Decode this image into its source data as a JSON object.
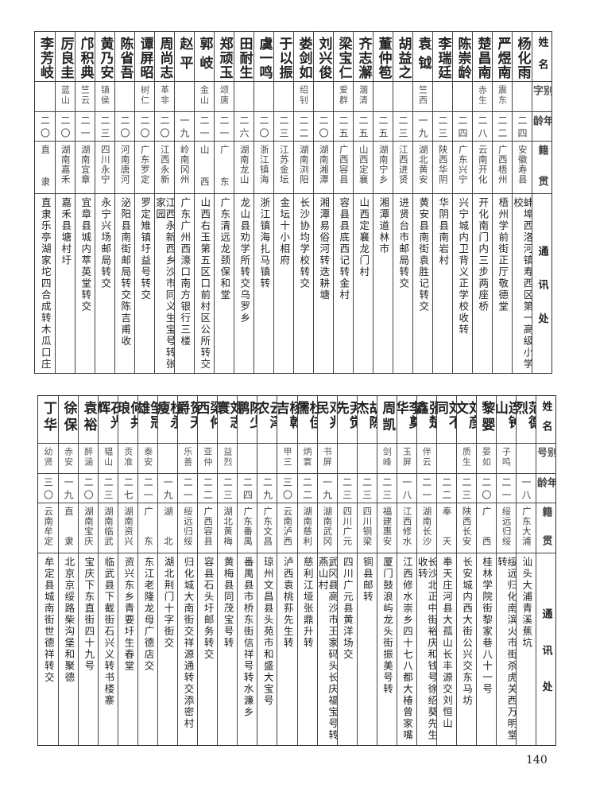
{
  "top_table": {
    "headers": [
      "姓名",
      "别字",
      "年龄",
      "籍贯",
      "通讯处"
    ],
    "rows": [
      {
        "name": "杨化雨",
        "alias": "",
        "age": "二四",
        "native_place": "安徽寿县",
        "address": "蚌埠西洛河镇寿西区第一高级小学校"
      },
      {
        "name": "严煜南",
        "alias": "震东",
        "age": "二二",
        "native_place": "广西梧州",
        "address": "梧州学前街正厅敬德堂"
      },
      {
        "name": "楚昌南",
        "alias": "赤生",
        "age": "二八",
        "native_place": "云南开化",
        "address": "开化南门内三步两座桥"
      },
      {
        "name": "陈崇龄",
        "alias": "",
        "age": "二四",
        "native_place": "广东兴宁",
        "address": "兴宁城内卫背义正学校收转"
      },
      {
        "name": "李瑞廷",
        "alias": "",
        "age": "二三",
        "native_place": "陕西华阴",
        "address": "华阴县南岩村"
      },
      {
        "name": "袁钺",
        "alias": "竺西",
        "age": "一九",
        "native_place": "湖北黄安",
        "address": "黄安县南街袁胜记转交"
      },
      {
        "name": "胡益之",
        "alias": "",
        "age": "二三",
        "native_place": "江西进贤",
        "address": "进贤台市邮局转交"
      },
      {
        "name": "董仲笣",
        "alias": "",
        "age": "二五",
        "native_place": "湖南宁乡",
        "address": "湘潭道林市"
      },
      {
        "name": "齐志澥",
        "alias": "溷清",
        "age": "二五",
        "native_place": "山西定襄",
        "address": "山西定襄龙门村"
      },
      {
        "name": "梁宝仁",
        "alias": "爱群",
        "age": "二五",
        "native_place": "广西容县",
        "address": "容县县底西记转金村"
      },
      {
        "name": "刘兴俊",
        "alias": "",
        "age": "二〇",
        "native_place": "湖南湘潭",
        "address": "湘潭易俗河转迭耕塘"
      },
      {
        "name": "娄剑如",
        "alias": "绍钊",
        "age": "二二",
        "native_place": "湖南浏阳",
        "address": "长沙协均学校转交"
      },
      {
        "name": "于以振",
        "alias": "",
        "age": "二三",
        "native_place": "江苏金坛",
        "address": "金坛十小相府"
      },
      {
        "name": "虞一鸣",
        "alias": "",
        "age": "二〇",
        "native_place": "浙江镇海",
        "address": "浙江镇海扎马镇转"
      },
      {
        "name": "田耐生",
        "alias": "",
        "age": "二六",
        "native_place": "湖南龙山",
        "address": "龙山县劝学所转交乌罗乡"
      },
      {
        "name": "郑顽玉",
        "alias": "颂唐",
        "age": "二一",
        "native_place": "广东",
        "address": "广东清远龙颈保和堂"
      },
      {
        "name": "郭岐",
        "alias": "金山",
        "age": "二一",
        "native_place": "山西",
        "address": "山西右玉第五区口前村区公所转交"
      },
      {
        "name": "赵平",
        "alias": "",
        "age": "一九",
        "native_place": "岭南冈州",
        "address": "广东广州西濠口南方银行三楼"
      },
      {
        "name": "周尚志",
        "alias": "革非",
        "age": "二〇",
        "native_place": "江西永新",
        "address": "江西永新西乡沙市同义生宝号转张家园"
      },
      {
        "name": "谭屏昭",
        "alias": "树仁",
        "age": "二〇",
        "native_place": "广东罗定",
        "address": "罗定雉镇圩益号转交"
      },
      {
        "name": "陈省吾",
        "alias": "",
        "age": "二〇",
        "native_place": "河南唐河",
        "address": "泌阳县南街邮局转交陈吉甫收"
      },
      {
        "name": "黄乃安",
        "alias": "镇侯",
        "age": "二三",
        "native_place": "四川永宁",
        "address": "永宁兴场邮局转交"
      },
      {
        "name": "邝积典",
        "alias": "竺云",
        "age": "二一",
        "native_place": "湖南宜章",
        "address": "宜章县城内萃英堂转交"
      },
      {
        "name": "厉良圭",
        "alias": "蓝山",
        "age": "二〇",
        "native_place": "湖南嘉禾",
        "address": "嘉禾县塘村圩"
      },
      {
        "name": "李芳岐",
        "alias": "",
        "age": "二〇",
        "native_place": "直隶",
        "address": "直隶乐亭湖家坨四合成转木瓜口庄"
      }
    ]
  },
  "bottom_table": {
    "headers": [
      "姓名",
      "别号",
      "年龄",
      "籍贯",
      "通讯处"
    ],
    "rows": [
      {
        "name": "范德烈",
        "alias": "",
        "age": "一八",
        "native_place": "广东大浦",
        "address": "汕头大浦青溪蕉坑"
      },
      {
        "name": "连钟山",
        "alias": "子鸣",
        "age": "二一",
        "native_place": "绥远归绥",
        "address": "绥远归化南滨火市街杀虎关西万明堂转"
      },
      {
        "name": "黎婴",
        "alias": "晏如",
        "age": "二〇",
        "native_place": "广西",
        "address": "桂林学院街黎家巷八十一号"
      },
      {
        "name": "刘彦文",
        "alias": "质生",
        "age": "二三",
        "native_place": "陕西长安",
        "address": "长安城内西大街公兴交东马坊"
      },
      {
        "name": "刘不同",
        "alias": "",
        "age": "二二",
        "native_place": "奉天",
        "address": "奉天庄河县大孤山长丰源交刘恒山"
      },
      {
        "name": "张楚鑫",
        "alias": "伴云",
        "age": "二一",
        "native_place": "湖南长沙",
        "address": "长沙北正中街裕庆和钱号徐绍葵先生收转"
      },
      {
        "name": "李奠华",
        "alias": "玉屏",
        "age": "一八",
        "native_place": "江西修水",
        "address": "江西修水崇乡四十七八都大椿曾家嘴"
      },
      {
        "name": "周凯",
        "alias": "剑峰",
        "age": "二三",
        "native_place": "福建惠安",
        "address": "厦门鼓浪屿龙头街振美号转"
      },
      {
        "name": "胡陈杰",
        "alias": "",
        "age": "二三",
        "native_place": "四川铜梁",
        "address": "铜县邮转"
      },
      {
        "name": "尹觉先",
        "alias": "",
        "age": "二三",
        "native_place": "四川广元",
        "address": "四川广元县黄洋场交"
      },
      {
        "name": "邓兆民",
        "alias": "书屏",
        "age": "一九",
        "native_place": "湖南武冈",
        "address": "武冈县高沙市王家码头长庆福宝号转燕山村"
      },
      {
        "name": "杜佳儒",
        "alias": "炳寰",
        "age": "二二",
        "native_place": "湖南慈利",
        "address": "慈利江垭张鼎升转"
      },
      {
        "name": "杨乾吉",
        "alias": "甲三",
        "age": "三〇",
        "native_place": "云南泸西",
        "address": "泸西袁桃荪先生转"
      },
      {
        "name": "云泽农",
        "alias": "",
        "age": "二九",
        "native_place": "广东文昌",
        "address": "琼州文昌县头苑市和盛大宝号"
      },
      {
        "name": "陈少鹏",
        "alias": "",
        "age": "二四",
        "native_place": "广东番禺",
        "address": "番禺县市桥东街信祥号转水濂乡"
      },
      {
        "name": "刘志寰",
        "alias": "益烈",
        "age": "二三",
        "native_place": "湖北黄梅",
        "address": "黄梅县同茂宝号转"
      },
      {
        "name": "梁仲西",
        "alias": "亚仲",
        "age": "二二",
        "native_place": "广西容县",
        "address": "容县石头圩邮务转交"
      },
      {
        "name": "贺天爵",
        "alias": "乐善",
        "age": "二一",
        "native_place": "绥远归绥",
        "address": "归化城大南街交祥源通转交添密村"
      },
      {
        "name": "杜永瘦",
        "alias": "",
        "age": "一九",
        "native_place": "湖北",
        "address": "湖北荆门十字街交"
      },
      {
        "name": "邹冠雄",
        "alias": "泰安",
        "age": "二一",
        "native_place": "广东",
        "address": "东江老隆龙母广德店交"
      },
      {
        "name": "何共琅",
        "alias": "贡准",
        "age": "二七",
        "native_place": "湖南资兴",
        "address": "资兴东乡青要圩生春堂"
      },
      {
        "name": "石光辉",
        "alias": "韫山",
        "age": "二三",
        "native_place": "湖南临武",
        "address": "临武县下截街石兴义转书楼寨"
      },
      {
        "name": "袁裕",
        "alias": "醉涵",
        "age": "二〇",
        "native_place": "湖南宝庆",
        "address": "宝庆下东直街四十九号"
      },
      {
        "name": "徐保",
        "alias": "赤安",
        "age": "一九",
        "native_place": "直隶",
        "address": "北京京绥路柴沟堡和聚德"
      },
      {
        "name": "丁华",
        "alias": "幼贤",
        "age": "三〇",
        "native_place": "云南牟定",
        "address": "牟定县城南街世德祥转交"
      }
    ]
  },
  "page_number": "140"
}
